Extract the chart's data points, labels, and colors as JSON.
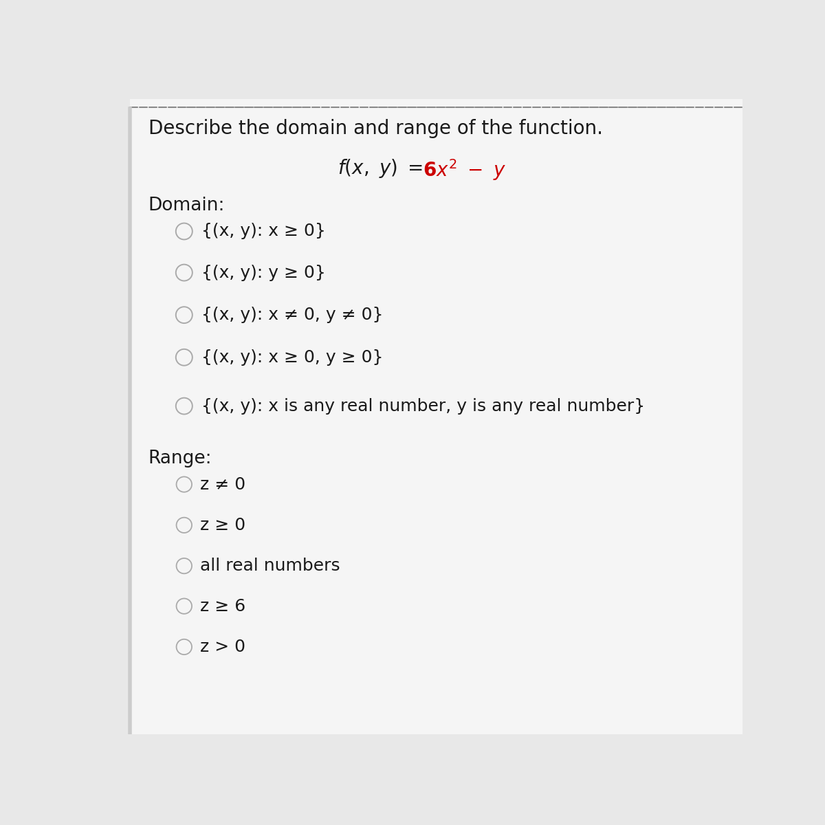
{
  "title": "Describe the domain and range of the function.",
  "domain_label": "Domain:",
  "domain_options": [
    "{(x, y): x ≥ 0}",
    "{(x, y): y ≥ 0}",
    "{(x, y): x ≠ 0, y ≠ 0}",
    "{(x, y): x ≥ 0, y ≥ 0}",
    "{(x, y): x is any real number, y is any real number}"
  ],
  "range_label": "Range:",
  "range_options": [
    "z ≠ 0",
    "z ≥ 0",
    "all real numbers",
    "z ≥ 6",
    "z > 0"
  ],
  "bg_color": "#e8e8e8",
  "panel_color": "#f5f5f5",
  "text_color": "#1a1a1a",
  "circle_edge_color": "#aaaaaa",
  "dotted_border_color": "#888888",
  "six_color": "#cc0000",
  "left_bar_color": "#cccccc"
}
